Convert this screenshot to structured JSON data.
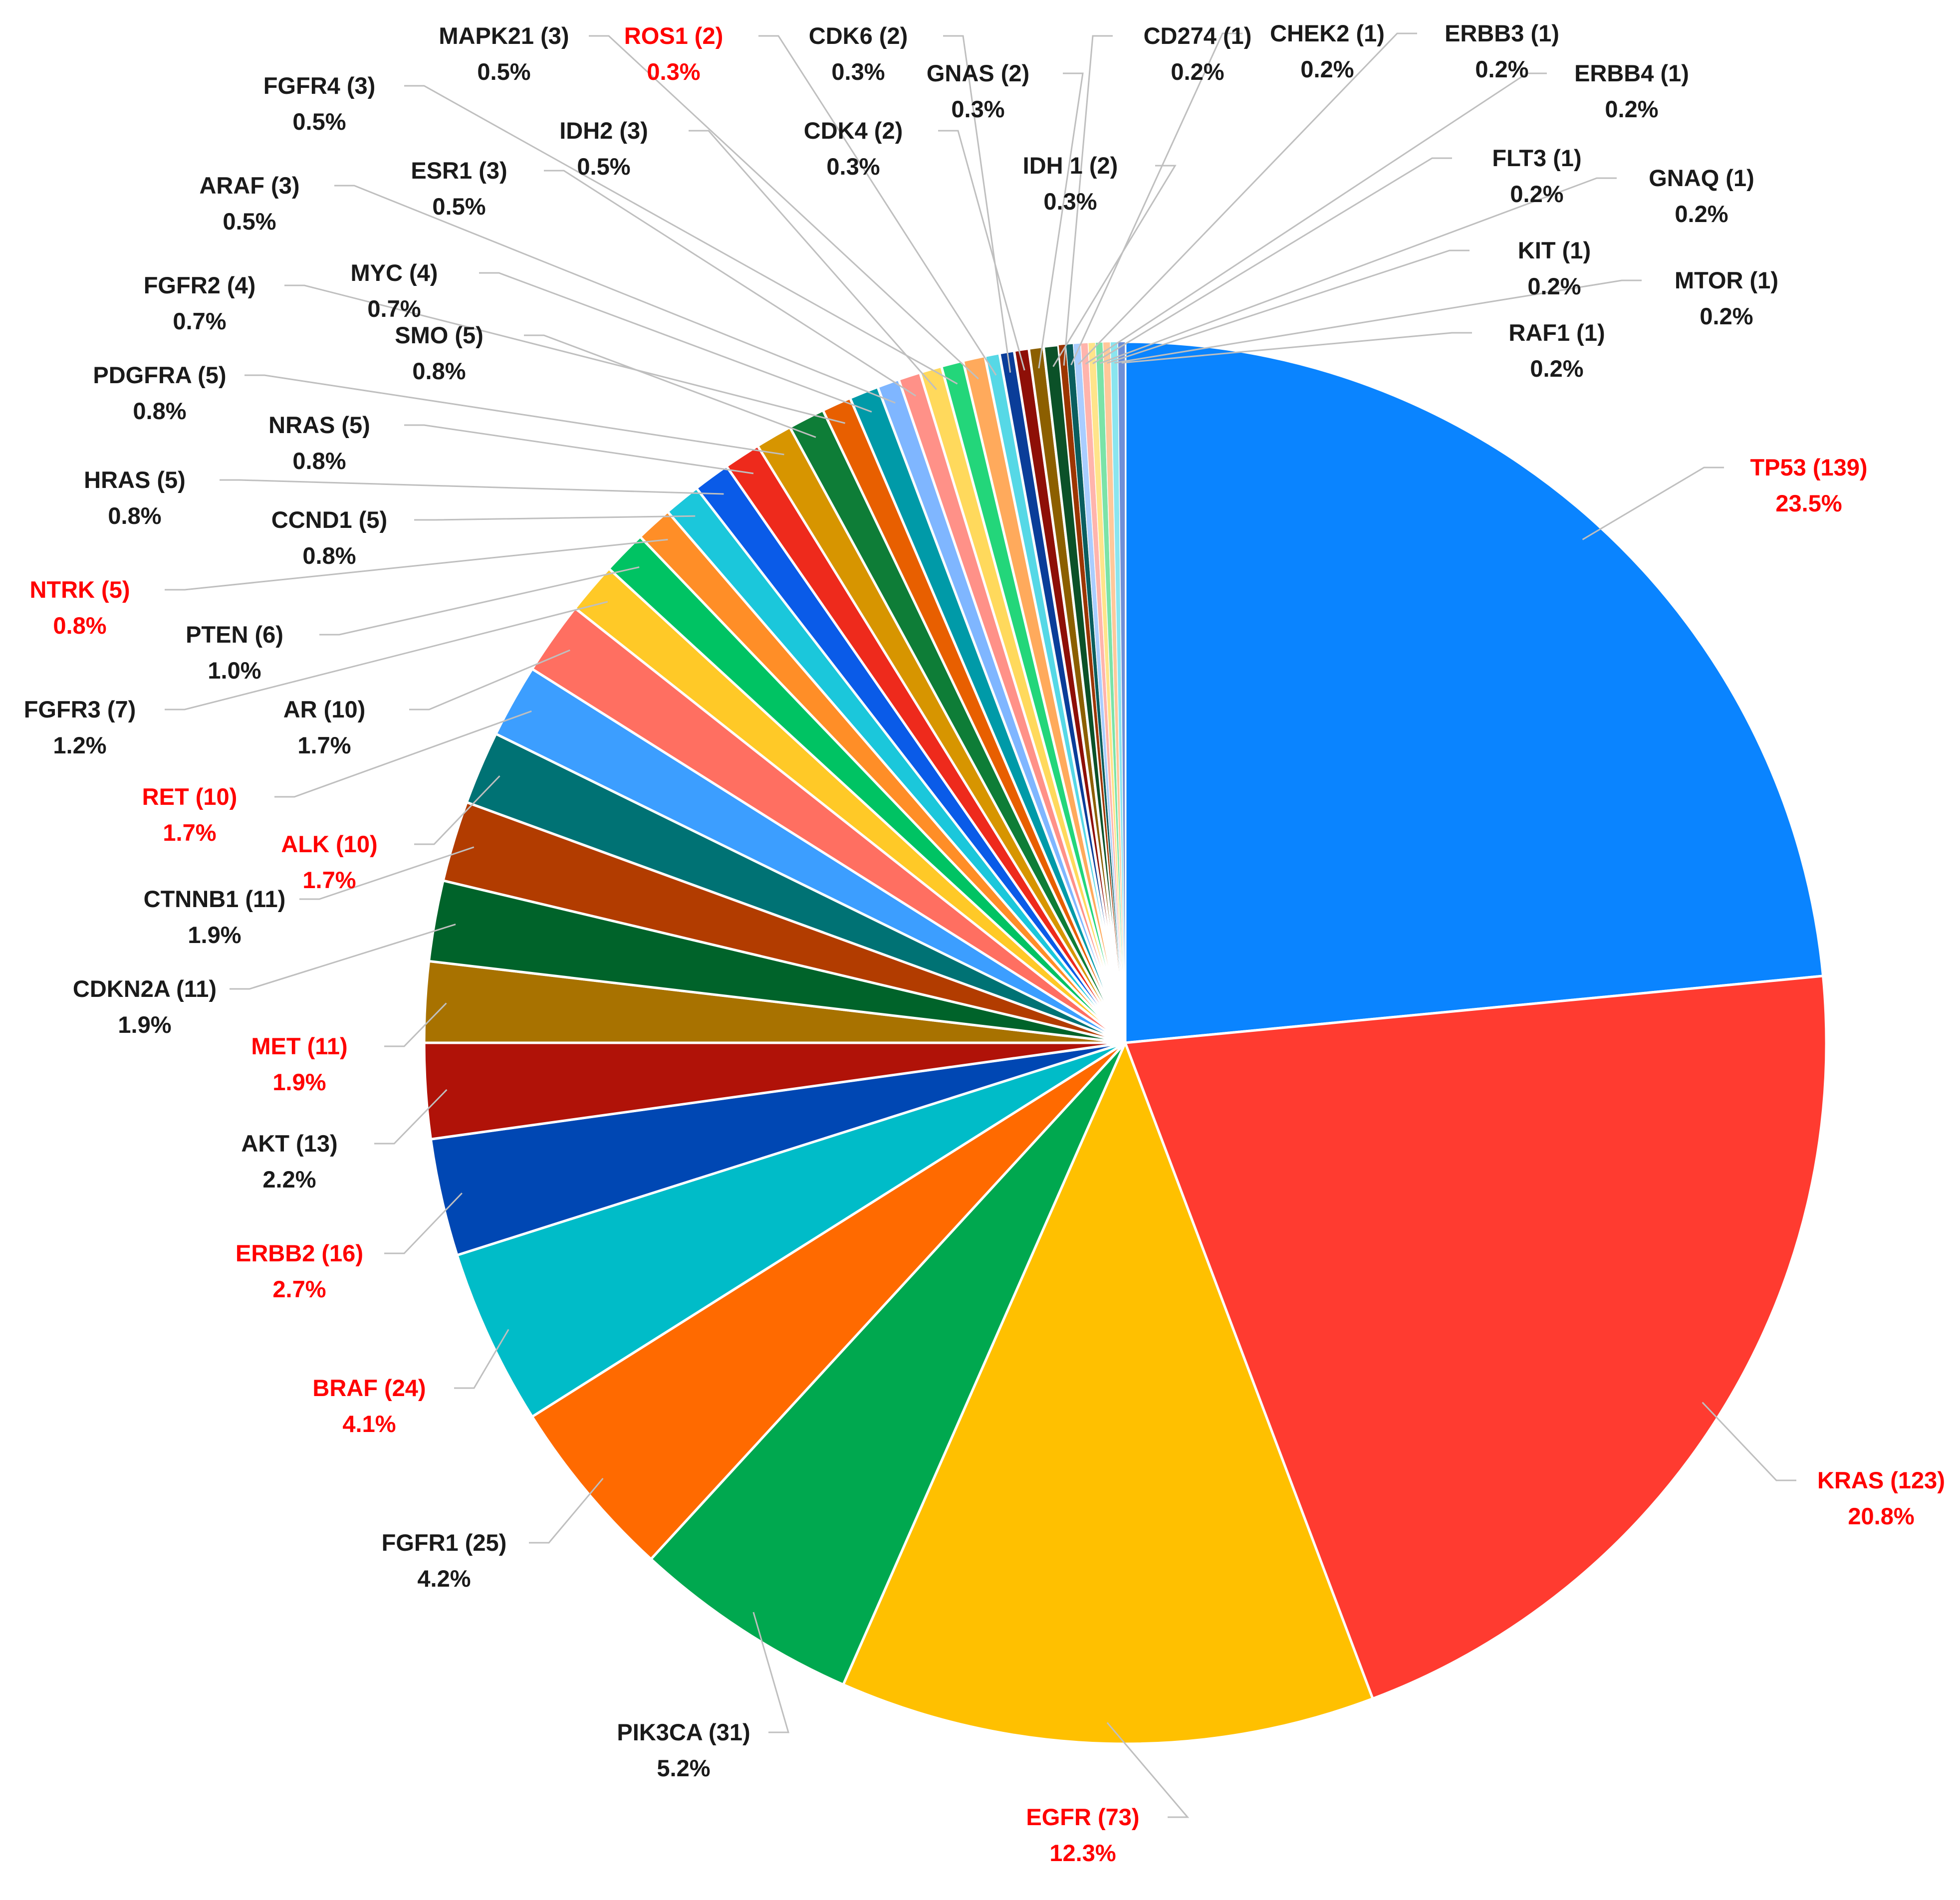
{
  "chart_data": {
    "type": "pie",
    "title": "",
    "start_position": "12 o'clock, clockwise",
    "slices": [
      {
        "name": "TP53",
        "count": 139,
        "percent": "23.5%",
        "color": "#0A84FF",
        "highlight": true
      },
      {
        "name": "KRAS",
        "count": 123,
        "percent": "20.8%",
        "color": "#FF3B30",
        "highlight": true
      },
      {
        "name": "EGFR",
        "count": 73,
        "percent": "12.3%",
        "color": "#FFC000",
        "highlight": true
      },
      {
        "name": "PIK3CA",
        "count": 31,
        "percent": "5.2%",
        "color": "#00A84F",
        "highlight": false
      },
      {
        "name": "FGFR1",
        "count": 25,
        "percent": "4.2%",
        "color": "#FF6A00",
        "highlight": false
      },
      {
        "name": "BRAF",
        "count": 24,
        "percent": "4.1%",
        "color": "#00BCC8",
        "highlight": true
      },
      {
        "name": "ERBB2",
        "count": 16,
        "percent": "2.7%",
        "color": "#0047B3",
        "highlight": true
      },
      {
        "name": "AKT",
        "count": 13,
        "percent": "2.2%",
        "color": "#B01208",
        "highlight": false
      },
      {
        "name": "MET",
        "count": 11,
        "percent": "1.9%",
        "color": "#A87200",
        "highlight": true
      },
      {
        "name": "CDKN2A",
        "count": 11,
        "percent": "1.9%",
        "color": "#00632A",
        "highlight": false
      },
      {
        "name": "CTNNB1",
        "count": 11,
        "percent": "1.9%",
        "color": "#B23C00",
        "highlight": false
      },
      {
        "name": "ALK",
        "count": 10,
        "percent": "1.7%",
        "color": "#007274",
        "highlight": true
      },
      {
        "name": "RET",
        "count": 10,
        "percent": "1.7%",
        "color": "#3C9EFF",
        "highlight": true
      },
      {
        "name": "AR",
        "count": 10,
        "percent": "1.7%",
        "color": "#FF6F61",
        "highlight": false
      },
      {
        "name": "FGFR3",
        "count": 7,
        "percent": "1.2%",
        "color": "#FFC927",
        "highlight": false
      },
      {
        "name": "PTEN",
        "count": 6,
        "percent": "1.0%",
        "color": "#00C363",
        "highlight": false
      },
      {
        "name": "NTRK",
        "count": 5,
        "percent": "0.8%",
        "color": "#FF8E27",
        "highlight": true
      },
      {
        "name": "CCND1",
        "count": 5,
        "percent": "0.8%",
        "color": "#1BC7DB",
        "highlight": false
      },
      {
        "name": "HRAS",
        "count": 5,
        "percent": "0.8%",
        "color": "#0A5BE8",
        "highlight": false
      },
      {
        "name": "NRAS",
        "count": 5,
        "percent": "0.8%",
        "color": "#EE2A1C",
        "highlight": false
      },
      {
        "name": "PDGFRA",
        "count": 5,
        "percent": "0.8%",
        "color": "#D79500",
        "highlight": false
      },
      {
        "name": "SMO",
        "count": 5,
        "percent": "0.8%",
        "color": "#0E7D37",
        "highlight": false
      },
      {
        "name": "FGFR2",
        "count": 4,
        "percent": "0.7%",
        "color": "#E85F00",
        "highlight": false
      },
      {
        "name": "MYC",
        "count": 4,
        "percent": "0.7%",
        "color": "#009AA8",
        "highlight": false
      },
      {
        "name": "ARAF",
        "count": 3,
        "percent": "0.5%",
        "color": "#7FB6FF",
        "highlight": false
      },
      {
        "name": "ESR1",
        "count": 3,
        "percent": "0.5%",
        "color": "#FF9188",
        "highlight": false
      },
      {
        "name": "IDH2",
        "count": 3,
        "percent": "0.5%",
        "color": "#FFD95C",
        "highlight": false
      },
      {
        "name": "FGFR4",
        "count": 3,
        "percent": "0.5%",
        "color": "#23D67A",
        "highlight": false
      },
      {
        "name": "MAPK21",
        "count": 3,
        "percent": "0.5%",
        "color": "#FFAA5C",
        "highlight": false
      },
      {
        "name": "ROS1",
        "count": 2,
        "percent": "0.3%",
        "color": "#56D8E6",
        "highlight": true
      },
      {
        "name": "CDK6",
        "count": 2,
        "percent": "0.3%",
        "color": "#0A3D99",
        "highlight": false
      },
      {
        "name": "CDK4",
        "count": 2,
        "percent": "0.3%",
        "color": "#8E0F07",
        "highlight": false
      },
      {
        "name": "GNAS",
        "count": 2,
        "percent": "0.3%",
        "color": "#8C5F00",
        "highlight": false
      },
      {
        "name": "IDH 1",
        "count": 2,
        "percent": "0.3%",
        "color": "#0B5128",
        "highlight": false
      },
      {
        "name": "CD274",
        "count": 1,
        "percent": "0.2%",
        "color": "#9C3500",
        "highlight": false
      },
      {
        "name": "CHEK2",
        "count": 1,
        "percent": "0.2%",
        "color": "#0A5E5E",
        "highlight": false
      },
      {
        "name": "ERBB3",
        "count": 1,
        "percent": "0.2%",
        "color": "#A9CDFF",
        "highlight": false
      },
      {
        "name": "ERBB4",
        "count": 1,
        "percent": "0.2%",
        "color": "#FFB4AC",
        "highlight": false
      },
      {
        "name": "FLT3",
        "count": 1,
        "percent": "0.2%",
        "color": "#FFE48A",
        "highlight": false
      },
      {
        "name": "GNAQ",
        "count": 1,
        "percent": "0.2%",
        "color": "#7BE3A8",
        "highlight": false
      },
      {
        "name": "KIT",
        "count": 1,
        "percent": "0.2%",
        "color": "#FFC89A",
        "highlight": false
      },
      {
        "name": "MTOR",
        "count": 1,
        "percent": "0.2%",
        "color": "#8AE5EF",
        "highlight": false
      },
      {
        "name": "RAF1",
        "count": 1,
        "percent": "0.2%",
        "color": "#6F8FD6",
        "highlight": false
      }
    ]
  },
  "colors": {
    "highlight_label": "#FF0000",
    "default_label": "#1A1A1A",
    "leader_line": "#BFBFBF",
    "slice_border": "#FFFFFF"
  }
}
